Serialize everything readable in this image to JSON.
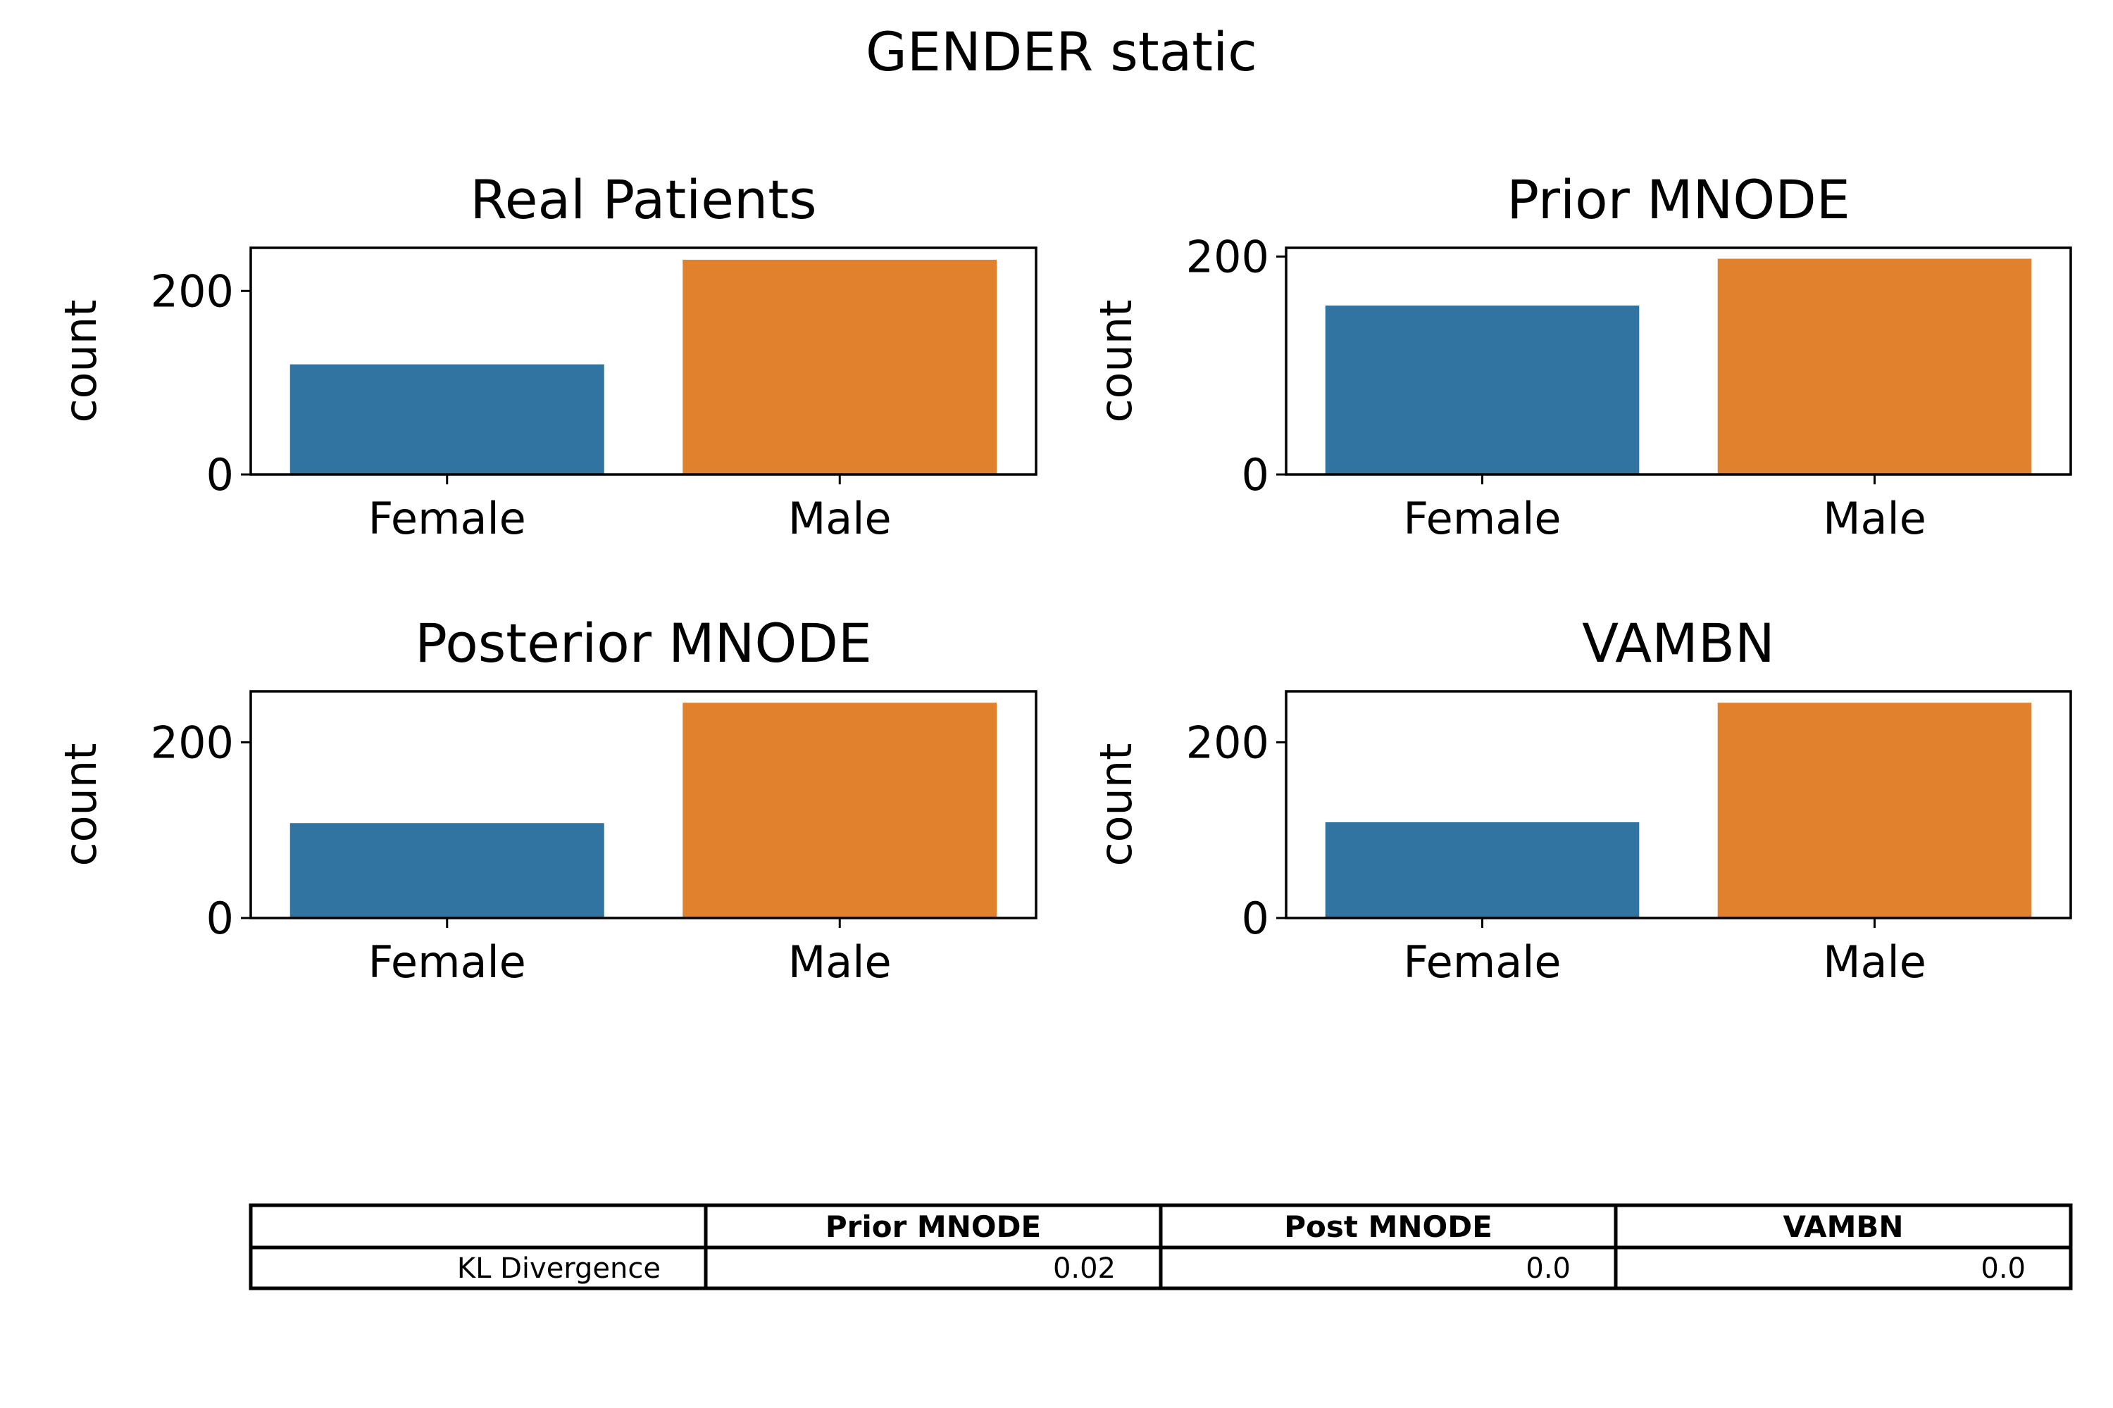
{
  "figure": {
    "title": "GENDER static"
  },
  "colors": {
    "Female": "#3274a1",
    "Male": "#e1812c"
  },
  "chart_data": [
    {
      "type": "bar",
      "title": "Real Patients",
      "xlabel": "",
      "ylabel": "count",
      "categories": [
        "Female",
        "Male"
      ],
      "values": [
        120,
        234
      ],
      "ylim": [
        0,
        247
      ],
      "yticks": [
        "0",
        "200"
      ]
    },
    {
      "type": "bar",
      "title": "Prior MNODE",
      "xlabel": "",
      "ylabel": "count",
      "categories": [
        "Female",
        "Male"
      ],
      "values": [
        155,
        198
      ],
      "ylim": [
        0,
        208
      ],
      "yticks": [
        "0",
        "200"
      ]
    },
    {
      "type": "bar",
      "title": "Posterior MNODE",
      "xlabel": "",
      "ylabel": "count",
      "categories": [
        "Female",
        "Male"
      ],
      "values": [
        108,
        245
      ],
      "ylim": [
        0,
        258
      ],
      "yticks": [
        "0",
        "200"
      ]
    },
    {
      "type": "bar",
      "title": "VAMBN",
      "xlabel": "",
      "ylabel": "count",
      "categories": [
        "Female",
        "Male"
      ],
      "values": [
        109,
        245
      ],
      "ylim": [
        0,
        258
      ],
      "yticks": [
        "0",
        "200"
      ]
    }
  ],
  "table": {
    "columns": [
      "",
      "Prior MNODE",
      "Post MNODE",
      "VAMBN"
    ],
    "rows": [
      {
        "label": "KL Divergence",
        "values": [
          "0.02",
          "0.0",
          "0.0"
        ]
      }
    ]
  }
}
